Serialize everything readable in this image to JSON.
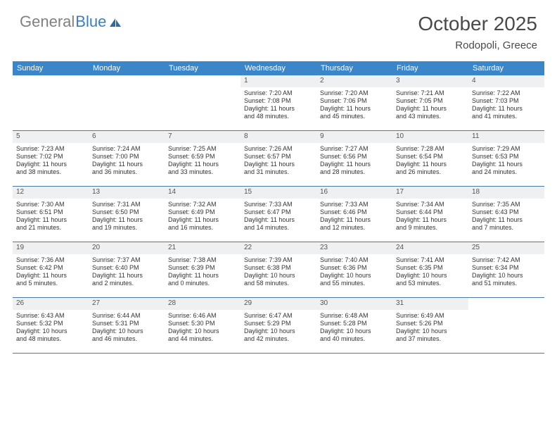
{
  "logo": {
    "word1": "General",
    "word2": "Blue"
  },
  "title": "October 2025",
  "location": "Rodopoli, Greece",
  "colors": {
    "header_bg": "#3a86c8",
    "header_text": "#ffffff",
    "daynum_bg": "#eef0f2",
    "border": "#4a7ba8",
    "logo_gray": "#808080",
    "logo_blue": "#3a7fc0"
  },
  "day_names": [
    "Sunday",
    "Monday",
    "Tuesday",
    "Wednesday",
    "Thursday",
    "Friday",
    "Saturday"
  ],
  "weeks": [
    [
      {
        "n": "",
        "sr": "",
        "ss": "",
        "d1": "",
        "d2": ""
      },
      {
        "n": "",
        "sr": "",
        "ss": "",
        "d1": "",
        "d2": ""
      },
      {
        "n": "",
        "sr": "",
        "ss": "",
        "d1": "",
        "d2": ""
      },
      {
        "n": "1",
        "sr": "Sunrise: 7:20 AM",
        "ss": "Sunset: 7:08 PM",
        "d1": "Daylight: 11 hours",
        "d2": "and 48 minutes."
      },
      {
        "n": "2",
        "sr": "Sunrise: 7:20 AM",
        "ss": "Sunset: 7:06 PM",
        "d1": "Daylight: 11 hours",
        "d2": "and 45 minutes."
      },
      {
        "n": "3",
        "sr": "Sunrise: 7:21 AM",
        "ss": "Sunset: 7:05 PM",
        "d1": "Daylight: 11 hours",
        "d2": "and 43 minutes."
      },
      {
        "n": "4",
        "sr": "Sunrise: 7:22 AM",
        "ss": "Sunset: 7:03 PM",
        "d1": "Daylight: 11 hours",
        "d2": "and 41 minutes."
      }
    ],
    [
      {
        "n": "5",
        "sr": "Sunrise: 7:23 AM",
        "ss": "Sunset: 7:02 PM",
        "d1": "Daylight: 11 hours",
        "d2": "and 38 minutes."
      },
      {
        "n": "6",
        "sr": "Sunrise: 7:24 AM",
        "ss": "Sunset: 7:00 PM",
        "d1": "Daylight: 11 hours",
        "d2": "and 36 minutes."
      },
      {
        "n": "7",
        "sr": "Sunrise: 7:25 AM",
        "ss": "Sunset: 6:59 PM",
        "d1": "Daylight: 11 hours",
        "d2": "and 33 minutes."
      },
      {
        "n": "8",
        "sr": "Sunrise: 7:26 AM",
        "ss": "Sunset: 6:57 PM",
        "d1": "Daylight: 11 hours",
        "d2": "and 31 minutes."
      },
      {
        "n": "9",
        "sr": "Sunrise: 7:27 AM",
        "ss": "Sunset: 6:56 PM",
        "d1": "Daylight: 11 hours",
        "d2": "and 28 minutes."
      },
      {
        "n": "10",
        "sr": "Sunrise: 7:28 AM",
        "ss": "Sunset: 6:54 PM",
        "d1": "Daylight: 11 hours",
        "d2": "and 26 minutes."
      },
      {
        "n": "11",
        "sr": "Sunrise: 7:29 AM",
        "ss": "Sunset: 6:53 PM",
        "d1": "Daylight: 11 hours",
        "d2": "and 24 minutes."
      }
    ],
    [
      {
        "n": "12",
        "sr": "Sunrise: 7:30 AM",
        "ss": "Sunset: 6:51 PM",
        "d1": "Daylight: 11 hours",
        "d2": "and 21 minutes."
      },
      {
        "n": "13",
        "sr": "Sunrise: 7:31 AM",
        "ss": "Sunset: 6:50 PM",
        "d1": "Daylight: 11 hours",
        "d2": "and 19 minutes."
      },
      {
        "n": "14",
        "sr": "Sunrise: 7:32 AM",
        "ss": "Sunset: 6:49 PM",
        "d1": "Daylight: 11 hours",
        "d2": "and 16 minutes."
      },
      {
        "n": "15",
        "sr": "Sunrise: 7:33 AM",
        "ss": "Sunset: 6:47 PM",
        "d1": "Daylight: 11 hours",
        "d2": "and 14 minutes."
      },
      {
        "n": "16",
        "sr": "Sunrise: 7:33 AM",
        "ss": "Sunset: 6:46 PM",
        "d1": "Daylight: 11 hours",
        "d2": "and 12 minutes."
      },
      {
        "n": "17",
        "sr": "Sunrise: 7:34 AM",
        "ss": "Sunset: 6:44 PM",
        "d1": "Daylight: 11 hours",
        "d2": "and 9 minutes."
      },
      {
        "n": "18",
        "sr": "Sunrise: 7:35 AM",
        "ss": "Sunset: 6:43 PM",
        "d1": "Daylight: 11 hours",
        "d2": "and 7 minutes."
      }
    ],
    [
      {
        "n": "19",
        "sr": "Sunrise: 7:36 AM",
        "ss": "Sunset: 6:42 PM",
        "d1": "Daylight: 11 hours",
        "d2": "and 5 minutes."
      },
      {
        "n": "20",
        "sr": "Sunrise: 7:37 AM",
        "ss": "Sunset: 6:40 PM",
        "d1": "Daylight: 11 hours",
        "d2": "and 2 minutes."
      },
      {
        "n": "21",
        "sr": "Sunrise: 7:38 AM",
        "ss": "Sunset: 6:39 PM",
        "d1": "Daylight: 11 hours",
        "d2": "and 0 minutes."
      },
      {
        "n": "22",
        "sr": "Sunrise: 7:39 AM",
        "ss": "Sunset: 6:38 PM",
        "d1": "Daylight: 10 hours",
        "d2": "and 58 minutes."
      },
      {
        "n": "23",
        "sr": "Sunrise: 7:40 AM",
        "ss": "Sunset: 6:36 PM",
        "d1": "Daylight: 10 hours",
        "d2": "and 55 minutes."
      },
      {
        "n": "24",
        "sr": "Sunrise: 7:41 AM",
        "ss": "Sunset: 6:35 PM",
        "d1": "Daylight: 10 hours",
        "d2": "and 53 minutes."
      },
      {
        "n": "25",
        "sr": "Sunrise: 7:42 AM",
        "ss": "Sunset: 6:34 PM",
        "d1": "Daylight: 10 hours",
        "d2": "and 51 minutes."
      }
    ],
    [
      {
        "n": "26",
        "sr": "Sunrise: 6:43 AM",
        "ss": "Sunset: 5:32 PM",
        "d1": "Daylight: 10 hours",
        "d2": "and 48 minutes."
      },
      {
        "n": "27",
        "sr": "Sunrise: 6:44 AM",
        "ss": "Sunset: 5:31 PM",
        "d1": "Daylight: 10 hours",
        "d2": "and 46 minutes."
      },
      {
        "n": "28",
        "sr": "Sunrise: 6:46 AM",
        "ss": "Sunset: 5:30 PM",
        "d1": "Daylight: 10 hours",
        "d2": "and 44 minutes."
      },
      {
        "n": "29",
        "sr": "Sunrise: 6:47 AM",
        "ss": "Sunset: 5:29 PM",
        "d1": "Daylight: 10 hours",
        "d2": "and 42 minutes."
      },
      {
        "n": "30",
        "sr": "Sunrise: 6:48 AM",
        "ss": "Sunset: 5:28 PM",
        "d1": "Daylight: 10 hours",
        "d2": "and 40 minutes."
      },
      {
        "n": "31",
        "sr": "Sunrise: 6:49 AM",
        "ss": "Sunset: 5:26 PM",
        "d1": "Daylight: 10 hours",
        "d2": "and 37 minutes."
      },
      {
        "n": "",
        "sr": "",
        "ss": "",
        "d1": "",
        "d2": ""
      }
    ]
  ]
}
